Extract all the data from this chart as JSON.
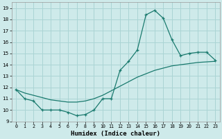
{
  "xlabel": "Humidex (Indice chaleur)",
  "bg_color": "#ceeaea",
  "line_color": "#1a7a6e",
  "grid_color": "#aad4d4",
  "xlim": [
    -0.5,
    23.5
  ],
  "ylim": [
    9,
    19.5
  ],
  "yticks": [
    9,
    10,
    11,
    12,
    13,
    14,
    15,
    16,
    17,
    18,
    19
  ],
  "xticks": [
    0,
    1,
    2,
    3,
    4,
    5,
    6,
    7,
    8,
    9,
    10,
    11,
    12,
    13,
    14,
    15,
    16,
    17,
    18,
    19,
    20,
    21,
    22,
    23
  ],
  "line1_x": [
    0,
    1,
    2,
    3,
    4,
    5,
    6,
    7,
    8,
    9,
    10,
    11,
    12,
    13,
    14,
    15,
    16,
    17,
    18,
    19,
    20,
    21,
    22,
    23
  ],
  "line1_y": [
    11.8,
    11.0,
    10.8,
    10.0,
    10.0,
    10.0,
    9.8,
    9.5,
    9.6,
    10.0,
    11.0,
    11.0,
    13.5,
    14.3,
    15.3,
    18.4,
    18.8,
    18.1,
    16.2,
    14.8,
    15.0,
    15.1,
    15.1,
    14.4
  ],
  "line2_x": [
    0,
    1,
    2,
    3,
    4,
    5,
    6,
    7,
    8,
    9,
    10,
    11,
    12,
    13,
    14,
    15,
    16,
    17,
    18,
    19,
    20,
    21,
    22,
    23
  ],
  "line2_y": [
    11.8,
    11.5,
    11.3,
    11.1,
    10.9,
    10.8,
    10.7,
    10.7,
    10.8,
    11.0,
    11.3,
    11.7,
    12.1,
    12.5,
    12.9,
    13.2,
    13.5,
    13.7,
    13.9,
    14.0,
    14.1,
    14.2,
    14.25,
    14.3
  ]
}
